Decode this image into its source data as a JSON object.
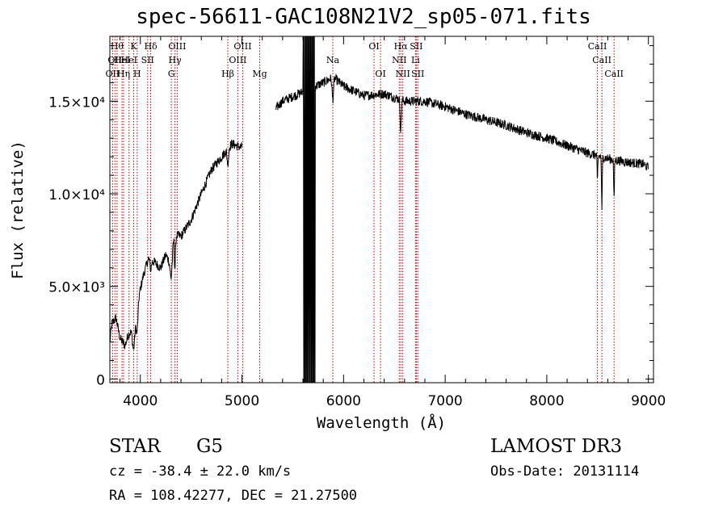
{
  "chart_data": {
    "type": "line",
    "title": "spec-56611-GAC108N21V2_sp05-071.fits",
    "xlabel": "Wavelength (Å)",
    "ylabel": "Flux (relative)",
    "xlim": [
      3700,
      9050
    ],
    "ylim": [
      -200,
      18500
    ],
    "x_ticks": [
      4000,
      5000,
      6000,
      7000,
      8000,
      9000
    ],
    "y_ticks": [
      {
        "value": 0,
        "label": "0"
      },
      {
        "value": 5000,
        "label": "5.0×10³"
      },
      {
        "value": 10000,
        "label": "1.0×10⁴"
      },
      {
        "value": 15000,
        "label": "1.5×10⁴"
      }
    ],
    "lines": [
      {
        "wave": 3727,
        "label": "OII",
        "row": 3
      },
      {
        "wave": 3750,
        "label": "OII",
        "row": 2
      },
      {
        "wave": 3771,
        "label": "Hθ",
        "row": 1
      },
      {
        "wave": 3820,
        "label": "HeI",
        "row": 2
      },
      {
        "wave": 3835,
        "label": "Hη",
        "row": 3
      },
      {
        "wave": 3889,
        "label": "HeI",
        "row": 2
      },
      {
        "wave": 3934,
        "label": "K",
        "row": 1
      },
      {
        "wave": 3969,
        "label": "H",
        "row": 3
      },
      {
        "wave": 4072,
        "label": "SII",
        "row": 2
      },
      {
        "wave": 4102,
        "label": "Hδ",
        "row": 1
      },
      {
        "wave": 4305,
        "label": "G",
        "row": 3
      },
      {
        "wave": 4341,
        "label": "Hγ",
        "row": 2
      },
      {
        "wave": 4363,
        "label": "OIII",
        "row": 1
      },
      {
        "wave": 4861,
        "label": "Hβ",
        "row": 3
      },
      {
        "wave": 4959,
        "label": "OIII",
        "row": 2
      },
      {
        "wave": 5007,
        "label": "OIII",
        "row": 1
      },
      {
        "wave": 5175,
        "label": "Mg",
        "row": 3
      },
      {
        "wave": 5894,
        "label": "Na",
        "row": 2
      },
      {
        "wave": 6300,
        "label": "OI",
        "row": 1
      },
      {
        "wave": 6364,
        "label": "OI",
        "row": 3
      },
      {
        "wave": 6548,
        "label": "NII",
        "row": 2
      },
      {
        "wave": 6563,
        "label": "Hα",
        "row": 1
      },
      {
        "wave": 6583,
        "label": "NII",
        "row": 3
      },
      {
        "wave": 6708,
        "label": "Li",
        "row": 2
      },
      {
        "wave": 6716,
        "label": "SII",
        "row": 1
      },
      {
        "wave": 6731,
        "label": "SII",
        "row": 3
      },
      {
        "wave": 8498,
        "label": "CaII",
        "row": 1
      },
      {
        "wave": 8542,
        "label": "CaII",
        "row": 2
      },
      {
        "wave": 8662,
        "label": "CaII",
        "row": 3
      }
    ],
    "flux_nodes": [
      [
        3700,
        2000
      ],
      [
        3720,
        3000
      ],
      [
        3760,
        3300
      ],
      [
        3800,
        2200
      ],
      [
        3850,
        1800
      ],
      [
        3880,
        2400
      ],
      [
        3920,
        2600
      ],
      [
        3960,
        3200
      ],
      [
        3990,
        4600
      ],
      [
        4030,
        5600
      ],
      [
        4080,
        6500
      ],
      [
        4140,
        6300
      ],
      [
        4200,
        6000
      ],
      [
        4250,
        6700
      ],
      [
        4300,
        6200
      ],
      [
        4330,
        7800
      ],
      [
        4400,
        7700
      ],
      [
        4500,
        8600
      ],
      [
        4600,
        10000
      ],
      [
        4700,
        11300
      ],
      [
        4800,
        12000
      ],
      [
        4900,
        12700
      ],
      [
        4990,
        12500
      ],
      [
        5400,
        15000
      ],
      [
        5600,
        15500
      ],
      [
        5800,
        16000
      ],
      [
        5900,
        16300
      ],
      [
        6000,
        15800
      ],
      [
        6200,
        15300
      ],
      [
        6400,
        15400
      ],
      [
        6600,
        15000
      ],
      [
        6800,
        15000
      ],
      [
        7000,
        14700
      ],
      [
        7200,
        14300
      ],
      [
        7400,
        14000
      ],
      [
        7600,
        13700
      ],
      [
        7800,
        13300
      ],
      [
        8000,
        13000
      ],
      [
        8200,
        12600
      ],
      [
        8400,
        12200
      ],
      [
        8600,
        11900
      ],
      [
        8800,
        11700
      ],
      [
        8950,
        11600
      ],
      [
        9000,
        11400
      ]
    ],
    "absorption": [
      [
        3934,
        1200,
        14
      ],
      [
        3969,
        1000,
        12
      ],
      [
        4102,
        500,
        10
      ],
      [
        4305,
        900,
        14
      ],
      [
        4340,
        1800,
        8
      ],
      [
        4861,
        800,
        10
      ],
      [
        5175,
        500,
        14
      ],
      [
        5894,
        1200,
        10
      ],
      [
        6563,
        1700,
        8
      ],
      [
        8498,
        1400,
        5
      ],
      [
        8542,
        2800,
        5
      ],
      [
        8662,
        2200,
        5
      ]
    ],
    "gap": {
      "start": 5000,
      "end": 5330
    },
    "noisy_region": {
      "start": 5600,
      "end": 5720,
      "low": -200,
      "high": 18500
    },
    "noise_amplitude": 260
  },
  "info": {
    "object_class": "STAR",
    "subclass": "G5",
    "cz": "cz = -38.4 ± 22.0 km/s",
    "radec": "RA = 108.42277, DEC =  21.27500",
    "survey": "LAMOST DR3",
    "obs_date": "Obs-Date: 20131114"
  }
}
